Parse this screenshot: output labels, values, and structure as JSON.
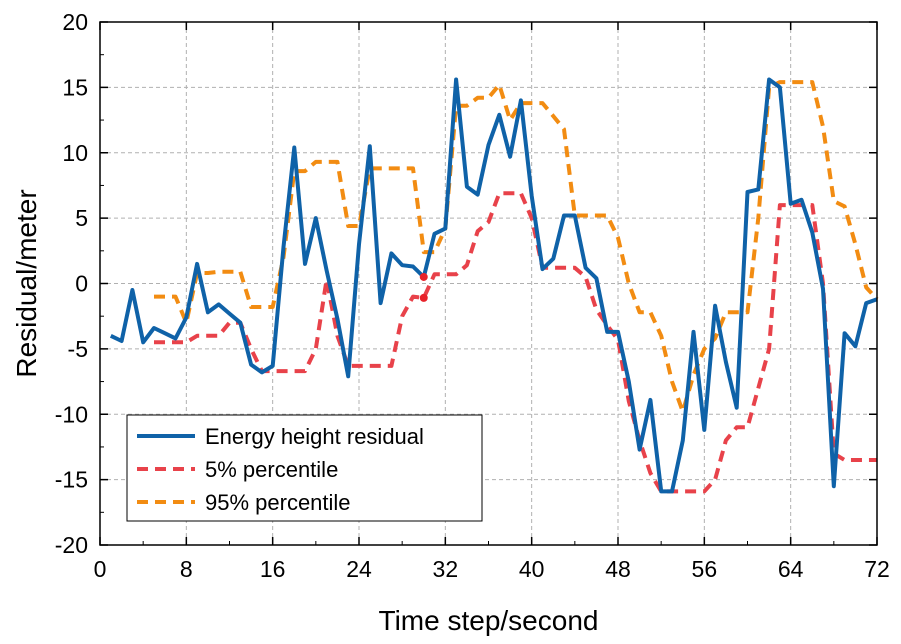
{
  "chart_data": {
    "type": "line",
    "xlabel": "Time step/second",
    "ylabel": "Residual/meter",
    "xlim": [
      0,
      72
    ],
    "ylim": [
      -20,
      20
    ],
    "xticks": [
      0,
      8,
      16,
      24,
      32,
      40,
      48,
      56,
      64,
      72
    ],
    "yticks": [
      -20,
      -15,
      -10,
      -5,
      0,
      5,
      10,
      15,
      20
    ],
    "grid": true,
    "legend_position": "bottom-left",
    "series": [
      {
        "name": "Energy height residual",
        "color": "#0f62a8",
        "style": "solid",
        "x": [
          1,
          2,
          3,
          4,
          5,
          6,
          7,
          8,
          9,
          10,
          11,
          12,
          13,
          14,
          15,
          16,
          17,
          18,
          19,
          20,
          21,
          22,
          23,
          24,
          25,
          26,
          27,
          28,
          29,
          30,
          31,
          32,
          33,
          34,
          35,
          36,
          37,
          38,
          39,
          40,
          41,
          42,
          43,
          44,
          45,
          46,
          47,
          48,
          49,
          50,
          51,
          52,
          53,
          54,
          55,
          56,
          57,
          58,
          59,
          60,
          61,
          62,
          63,
          64,
          65,
          66,
          67,
          68,
          69,
          70,
          71,
          72
        ],
        "y": [
          -4.0,
          -4.4,
          -0.5,
          -4.5,
          -3.4,
          -3.8,
          -4.2,
          -2.6,
          1.5,
          -2.2,
          -1.6,
          -2.3,
          -3.0,
          -6.2,
          -6.8,
          -6.3,
          2.8,
          10.4,
          1.5,
          5.0,
          1.0,
          -2.7,
          -7.1,
          3.0,
          10.5,
          -1.5,
          2.3,
          1.4,
          1.3,
          0.5,
          3.8,
          4.2,
          15.6,
          7.4,
          6.8,
          10.6,
          12.9,
          9.7,
          14.0,
          6.7,
          1.1,
          1.9,
          5.2,
          5.2,
          1.2,
          0.4,
          -3.7,
          -3.7,
          -7.5,
          -12.7,
          -8.9,
          -15.9,
          -15.9,
          -12.0,
          -3.7,
          -11.2,
          -1.7,
          -6.0,
          -9.5,
          7.0,
          7.2,
          15.6,
          15.0,
          6.1,
          6.4,
          3.9,
          -0.4,
          -15.5,
          -3.8,
          -4.8,
          -1.5,
          -1.2
        ]
      },
      {
        "name": "5% percentile",
        "color": "#e8424a",
        "style": "dashed",
        "x": [
          5,
          6,
          7,
          8,
          9,
          10,
          11,
          12,
          13,
          14,
          15,
          16,
          17,
          18,
          19,
          20,
          21,
          22,
          23,
          24,
          25,
          26,
          27,
          28,
          29,
          30,
          31,
          32,
          33,
          34,
          35,
          36,
          37,
          38,
          39,
          40,
          41,
          42,
          43,
          44,
          45,
          46,
          47,
          48,
          49,
          50,
          51,
          52,
          53,
          54,
          55,
          56,
          57,
          58,
          59,
          60,
          61,
          62,
          63,
          64,
          65,
          66,
          67,
          68,
          69,
          70,
          71,
          72
        ],
        "y": [
          -4.5,
          -4.5,
          -4.5,
          -4.5,
          -4.0,
          -4.0,
          -4.0,
          -3.0,
          -3.0,
          -5.0,
          -6.7,
          -6.7,
          -6.7,
          -6.7,
          -6.7,
          -5.0,
          0.3,
          -4.0,
          -6.3,
          -6.3,
          -6.3,
          -6.3,
          -6.3,
          -2.5,
          -1.0,
          -1.1,
          0.7,
          0.7,
          0.7,
          1.4,
          4.0,
          4.7,
          6.9,
          6.9,
          6.9,
          5.0,
          1.2,
          1.2,
          1.2,
          1.2,
          0.5,
          -2.0,
          -3.2,
          -4.3,
          -9.0,
          -12.0,
          -14.5,
          -15.9,
          -15.9,
          -15.9,
          -15.9,
          -15.9,
          -15.0,
          -12.0,
          -11.0,
          -11.0,
          -8.0,
          -5.0,
          6.0,
          6.0,
          6.0,
          6.0,
          0.0,
          -13.0,
          -13.5,
          -13.5,
          -13.5,
          -13.5
        ]
      },
      {
        "name": "95% percentile",
        "color": "#f28c12",
        "style": "dashed",
        "x": [
          5,
          6,
          7,
          8,
          9,
          10,
          11,
          12,
          13,
          14,
          15,
          16,
          17,
          18,
          19,
          20,
          21,
          22,
          23,
          24,
          25,
          26,
          27,
          28,
          29,
          30,
          31,
          32,
          33,
          34,
          35,
          36,
          37,
          38,
          39,
          40,
          41,
          42,
          43,
          44,
          45,
          46,
          47,
          48,
          49,
          50,
          51,
          52,
          53,
          54,
          55,
          56,
          57,
          58,
          59,
          60,
          61,
          62,
          63,
          64,
          65,
          66,
          67,
          68,
          69,
          70,
          71,
          72
        ],
        "y": [
          -1.0,
          -1.0,
          -1.0,
          -3.0,
          0.8,
          0.8,
          0.9,
          0.9,
          0.9,
          -1.8,
          -1.8,
          -1.8,
          2.0,
          8.6,
          8.6,
          9.3,
          9.3,
          9.3,
          4.4,
          4.4,
          8.8,
          8.8,
          8.8,
          8.8,
          8.8,
          2.4,
          2.4,
          4.2,
          13.6,
          13.6,
          14.2,
          14.2,
          15.2,
          12.5,
          13.8,
          13.8,
          13.8,
          12.8,
          11.8,
          5.2,
          5.2,
          5.2,
          5.2,
          3.5,
          0.0,
          -2.2,
          -2.2,
          -4.0,
          -7.5,
          -9.8,
          -7.0,
          -5.0,
          -4.2,
          -2.2,
          -2.2,
          -2.2,
          5.0,
          15.0,
          15.4,
          15.4,
          15.4,
          15.4,
          12.0,
          6.3,
          5.9,
          3.0,
          -0.3,
          -1.2
        ]
      }
    ],
    "markers": [
      {
        "x": 30,
        "y": 0.5,
        "color": "#e8222a"
      },
      {
        "x": 30,
        "y": -1.1,
        "color": "#e8222a"
      }
    ]
  }
}
